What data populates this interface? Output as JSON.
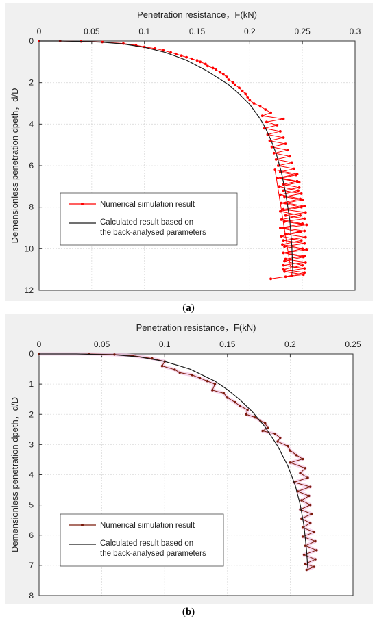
{
  "chart_data": [
    {
      "id": "a",
      "type": "line",
      "xlabel": "Penetration resistance，F(kN)",
      "ylabel": "Demensionless penetration dpeth，d/D",
      "xlim": [
        0,
        0.3
      ],
      "ylim": [
        0,
        12
      ],
      "y_inverted": true,
      "x_axis_position": "top",
      "xticks": [
        "0",
        "0.05",
        "0.1",
        "0.15",
        "0.2",
        "0.25",
        "0.3"
      ],
      "yticks": [
        "0",
        "2",
        "4",
        "6",
        "8",
        "10",
        "12"
      ],
      "grid": true,
      "legend_position": "bottom-left",
      "series": [
        {
          "name": "Numerical simulation result",
          "color": "#ff0000",
          "marker": "dot",
          "x": [
            0,
            0.02,
            0.04,
            0.06,
            0.08,
            0.092,
            0.1,
            0.11,
            0.118,
            0.125,
            0.13,
            0.135,
            0.14,
            0.145,
            0.15,
            0.153,
            0.158,
            0.16,
            0.165,
            0.168,
            0.172,
            0.175,
            0.178,
            0.18,
            0.184,
            0.186,
            0.19,
            0.193,
            0.196,
            0.198,
            0.2,
            0.204,
            0.21,
            0.215,
            0.22,
            0.212,
            0.232,
            0.216,
            0.226,
            0.214,
            0.229,
            0.217,
            0.232,
            0.219,
            0.234,
            0.221,
            0.236,
            0.223,
            0.238,
            0.225,
            0.24,
            0.227,
            0.242,
            0.229,
            0.244,
            0.23,
            0.245,
            0.232,
            0.247,
            0.232,
            0.249,
            0.233,
            0.25,
            0.234,
            0.252,
            0.232,
            0.253,
            0.234,
            0.252,
            0.233,
            0.254,
            0.232,
            0.252,
            0.234,
            0.253,
            0.232,
            0.252,
            0.233,
            0.254,
            0.232,
            0.252,
            0.234,
            0.253,
            0.232,
            0.252,
            0.233,
            0.251,
            0.234,
            0.252,
            0.232,
            0.25,
            0.233,
            0.251,
            0.232,
            0.25,
            0.231,
            0.249,
            0.23,
            0.248,
            0.229,
            0.25,
            0.23,
            0.248,
            0.229,
            0.249,
            0.23,
            0.248,
            0.229,
            0.246,
            0.228,
            0.247,
            0.226,
            0.245,
            0.224,
            0.24,
            0.22
          ],
          "y": [
            0,
            0.0,
            0.02,
            0.05,
            0.12,
            0.2,
            0.28,
            0.36,
            0.45,
            0.55,
            0.62,
            0.7,
            0.78,
            0.85,
            0.93,
            1.0,
            1.1,
            1.2,
            1.3,
            1.38,
            1.5,
            1.6,
            1.72,
            1.85,
            2.0,
            2.1,
            2.25,
            2.4,
            2.55,
            2.7,
            2.85,
            3.0,
            3.15,
            3.3,
            3.45,
            3.6,
            3.75,
            3.9,
            4.05,
            4.2,
            4.35,
            4.5,
            4.65,
            4.8,
            4.95,
            5.1,
            5.25,
            5.4,
            5.55,
            5.7,
            5.85,
            6.0,
            6.15,
            6.3,
            6.45,
            6.6,
            6.75,
            6.9,
            7.05,
            7.2,
            7.35,
            7.5,
            7.65,
            7.8,
            7.95,
            8.1,
            8.25,
            8.4,
            8.55,
            8.7,
            8.85,
            9.0,
            9.15,
            9.3,
            9.45,
            9.6,
            9.75,
            9.9,
            10.05,
            10.2,
            10.35,
            10.5,
            10.65,
            10.8,
            10.95,
            11.1,
            11.25,
            11.35,
            11.15,
            11.0,
            10.8,
            10.6,
            10.4,
            10.2,
            10.0,
            9.8,
            9.6,
            9.4,
            9.2,
            9.0,
            8.8,
            8.6,
            8.4,
            8.2,
            8.0,
            7.8,
            7.6,
            7.4,
            7.2,
            7.0,
            6.8,
            6.6,
            6.4,
            6.2,
            11.3,
            11.45
          ]
        },
        {
          "name": "Calculated result based on\nthe back-analysed parameters",
          "color": "#1a1a1a",
          "marker": "none",
          "x": [
            0,
            0.02,
            0.04,
            0.06,
            0.08,
            0.1,
            0.12,
            0.14,
            0.16,
            0.18,
            0.19,
            0.2,
            0.21,
            0.215,
            0.22,
            0.225,
            0.23,
            0.234,
            0.238,
            0.24,
            0.241
          ],
          "y": [
            0,
            0.0,
            0.02,
            0.06,
            0.14,
            0.3,
            0.55,
            0.92,
            1.45,
            2.1,
            2.55,
            3.05,
            3.75,
            4.2,
            4.75,
            5.4,
            6.3,
            7.3,
            8.6,
            9.9,
            11.3
          ]
        }
      ]
    },
    {
      "id": "b",
      "type": "line",
      "xlabel": "Penetration resistance，F(kN)",
      "ylabel": "Demensionless penetration dpeth，d/D",
      "xlim": [
        0,
        0.25
      ],
      "ylim": [
        0,
        8
      ],
      "y_inverted": true,
      "x_axis_position": "top",
      "xticks": [
        "0",
        "0.05",
        "0.1",
        "0.15",
        "0.2",
        "0.25"
      ],
      "yticks": [
        "0",
        "1",
        "2",
        "3",
        "4",
        "5",
        "6",
        "7",
        "8"
      ],
      "grid": true,
      "legend_position": "bottom-left",
      "series": [
        {
          "name": "Numerical simulation result",
          "color": "#7a1a0a",
          "marker": "dot",
          "x": [
            0,
            0.04,
            0.06,
            0.075,
            0.09,
            0.1,
            0.098,
            0.108,
            0.112,
            0.122,
            0.128,
            0.134,
            0.14,
            0.138,
            0.147,
            0.15,
            0.156,
            0.16,
            0.166,
            0.165,
            0.172,
            0.176,
            0.18,
            0.182,
            0.178,
            0.188,
            0.192,
            0.19,
            0.198,
            0.2,
            0.205,
            0.21,
            0.2,
            0.212,
            0.208,
            0.214,
            0.203,
            0.216,
            0.206,
            0.215,
            0.209,
            0.216,
            0.208,
            0.217,
            0.209,
            0.216,
            0.21,
            0.219,
            0.21,
            0.22,
            0.212,
            0.221,
            0.211,
            0.22,
            0.212,
            0.219,
            0.213
          ],
          "y": [
            0,
            0.0,
            0.02,
            0.06,
            0.15,
            0.25,
            0.4,
            0.52,
            0.62,
            0.7,
            0.8,
            0.9,
            1.0,
            1.2,
            1.3,
            1.45,
            1.6,
            1.72,
            1.85,
            2.0,
            2.1,
            2.2,
            2.3,
            2.45,
            2.55,
            2.65,
            2.78,
            2.9,
            3.05,
            3.2,
            3.35,
            3.48,
            3.6,
            3.78,
            3.95,
            4.1,
            4.25,
            4.4,
            4.55,
            4.7,
            4.85,
            5.0,
            5.15,
            5.3,
            5.45,
            5.6,
            5.75,
            5.9,
            6.05,
            6.2,
            6.35,
            6.5,
            6.65,
            6.8,
            6.95,
            7.05,
            7.15
          ]
        },
        {
          "name": "Calculated result based on\nthe back-analysed parameters",
          "color": "#1a1a1a",
          "marker": "none",
          "x": [
            0,
            0.03,
            0.06,
            0.08,
            0.1,
            0.12,
            0.14,
            0.15,
            0.16,
            0.17,
            0.18,
            0.19,
            0.198,
            0.204,
            0.208,
            0.211,
            0.213,
            0.214
          ],
          "y": [
            0,
            0.0,
            0.03,
            0.1,
            0.25,
            0.5,
            0.9,
            1.18,
            1.52,
            1.92,
            2.42,
            3.05,
            3.7,
            4.35,
            5.0,
            5.7,
            6.5,
            7.1
          ]
        }
      ]
    }
  ],
  "captions": {
    "a": "(a)",
    "b": "(b)"
  }
}
